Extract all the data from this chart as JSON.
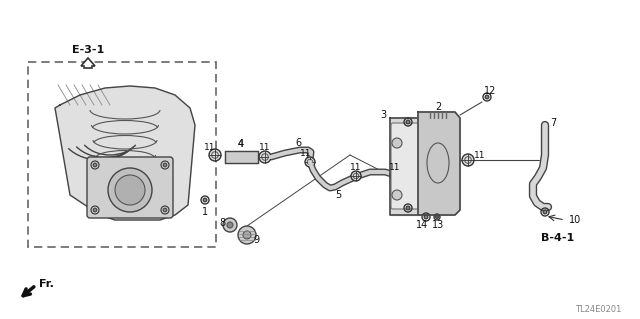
{
  "bg_color": "#ffffff",
  "diagram_code": "TL24E0201",
  "ref_e31": "E-3-1",
  "ref_b41": "B-4-1",
  "fr_label": "Fr."
}
